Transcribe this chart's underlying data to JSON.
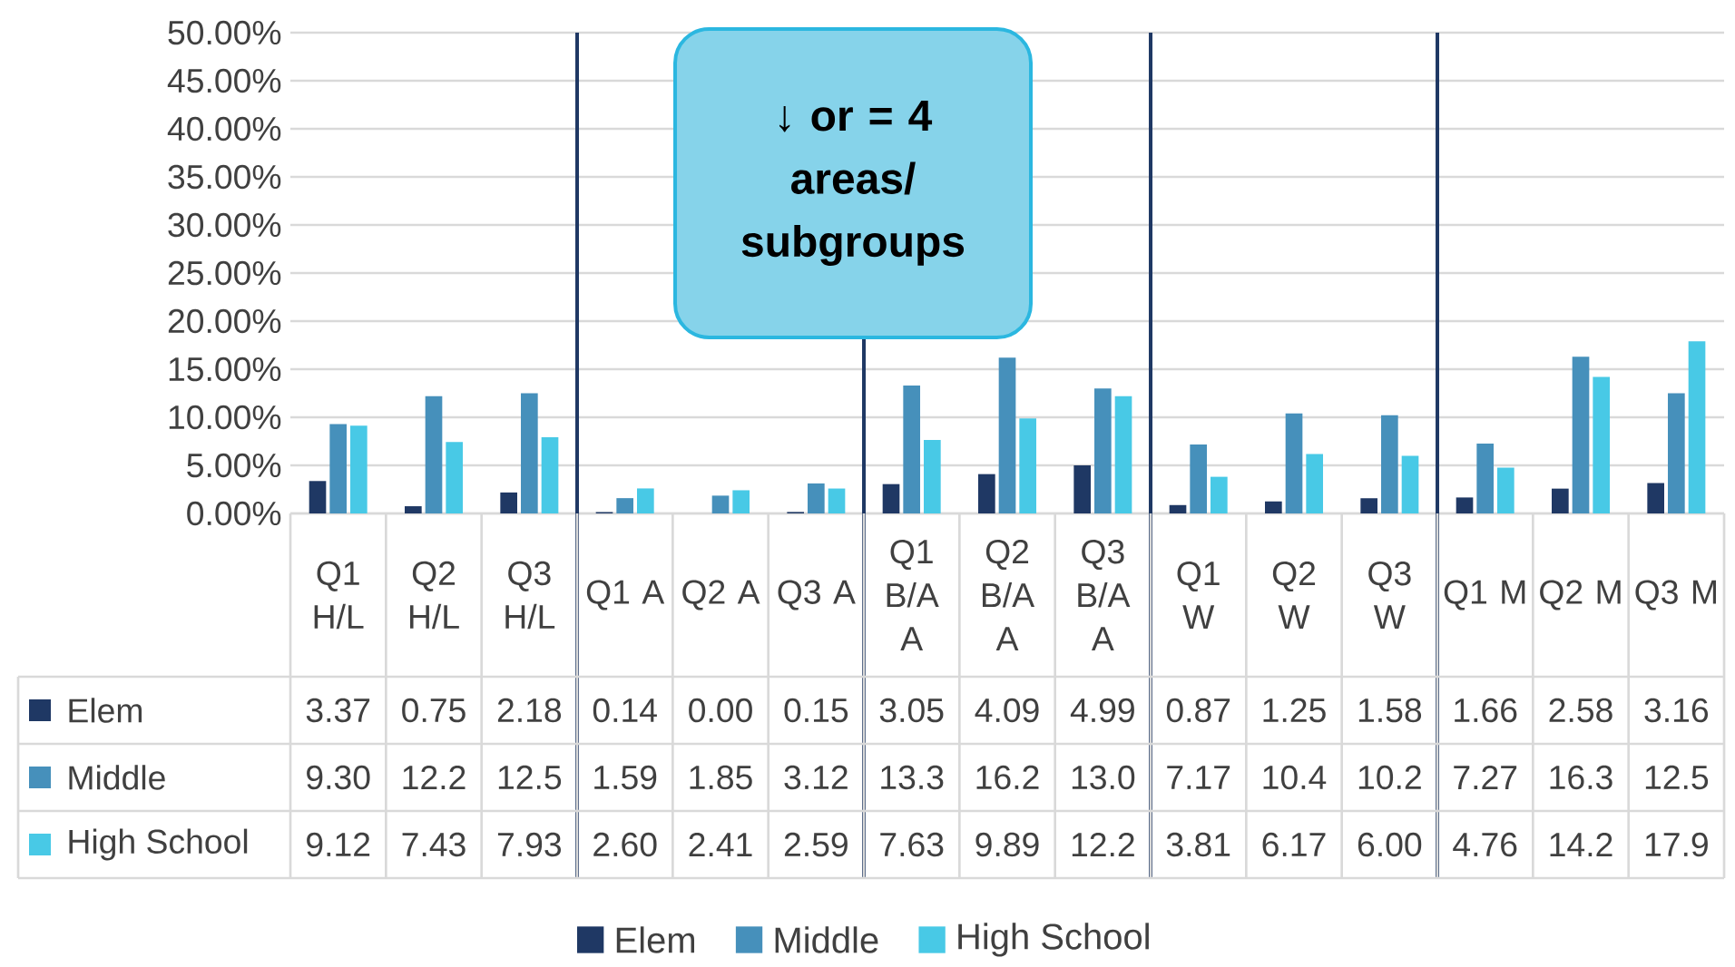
{
  "chart_data": {
    "type": "bar",
    "categories": [
      "Q1 H/L",
      "Q2 H/L",
      "Q3 H/L",
      "Q1 A",
      "Q2 A",
      "Q3 A",
      "Q1 B/A A",
      "Q2 B/A A",
      "Q3 B/A A",
      "Q1 W",
      "Q2 W",
      "Q3 W",
      "Q1 M",
      "Q2 M",
      "Q3 M"
    ],
    "series": [
      {
        "name": "Elem",
        "color": "#1f3864",
        "values": [
          3.37,
          0.75,
          2.18,
          0.14,
          0.0,
          0.15,
          3.05,
          4.09,
          4.99,
          0.87,
          1.25,
          1.58,
          1.66,
          2.58,
          3.16
        ],
        "value_labels": [
          "3.37",
          "0.75",
          "2.18",
          "0.14",
          "0.00",
          "0.15",
          "3.05",
          "4.09",
          "4.99",
          "0.87",
          "1.25",
          "1.58",
          "1.66",
          "2.58",
          "3.16"
        ]
      },
      {
        "name": "Middle",
        "color": "#4690bb",
        "values": [
          9.3,
          12.2,
          12.5,
          1.59,
          1.85,
          3.12,
          13.3,
          16.2,
          13.0,
          7.17,
          10.4,
          10.2,
          7.27,
          16.3,
          12.5
        ],
        "value_labels": [
          "9.30",
          "12.2",
          "12.5",
          "1.59",
          "1.85",
          "3.12",
          "13.3",
          "16.2",
          "13.0",
          "7.17",
          "10.4",
          "10.2",
          "7.27",
          "16.3",
          "12.5"
        ]
      },
      {
        "name": "High School",
        "color": "#48c9e6",
        "values": [
          9.12,
          7.43,
          7.93,
          2.6,
          2.41,
          2.59,
          7.63,
          9.89,
          12.2,
          3.81,
          6.17,
          6.0,
          4.76,
          14.2,
          17.9
        ],
        "value_labels": [
          "9.12",
          "7.43",
          "7.93",
          "2.60",
          "2.41",
          "2.59",
          "7.63",
          "9.89",
          "12.2",
          "3.81",
          "6.17",
          "6.00",
          "4.76",
          "14.2",
          "17.9"
        ]
      }
    ],
    "ylim": [
      0,
      50
    ],
    "yticks": [
      {
        "value": 0,
        "label": "0.00%"
      },
      {
        "value": 5,
        "label": "5.00%"
      },
      {
        "value": 10,
        "label": "10.00%"
      },
      {
        "value": 15,
        "label": "15.00%"
      },
      {
        "value": 20,
        "label": "20.00%"
      },
      {
        "value": 25,
        "label": "25.00%"
      },
      {
        "value": 30,
        "label": "30.00%"
      },
      {
        "value": 35,
        "label": "35.00%"
      },
      {
        "value": 40,
        "label": "40.00%"
      },
      {
        "value": 45,
        "label": "45.00%"
      },
      {
        "value": 50,
        "label": "50.00%"
      }
    ],
    "grid": "y",
    "legend": "bottom",
    "annotations": [
      "↓ or = 4 areas/ subgroups"
    ]
  }
}
